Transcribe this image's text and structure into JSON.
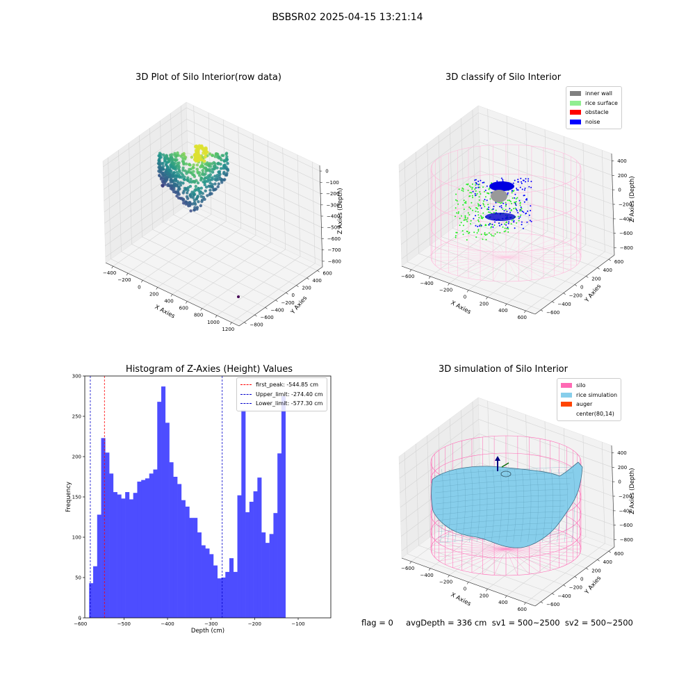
{
  "suptitle": "BSBSR02 2025-04-15 13:21:14",
  "bottom_info": "flag = 0     avgDepth = 336 cm  sv1 = 500~2500  sv2 = 500~2500",
  "chart_data": [
    {
      "type": "scatter",
      "title": "3D Plot of Silo Interior(row data)",
      "xlabel": "X Axies",
      "ylabel": "Y Axies",
      "zlabel": "Z Axies (Depth)",
      "x_ticks": [
        "−400",
        "−200",
        "0",
        "200",
        "400",
        "600",
        "800",
        "1000",
        "1200"
      ],
      "y_ticks": [
        "−800",
        "−600",
        "−400",
        "−200",
        "0",
        "200",
        "400",
        "600"
      ],
      "z_ticks": [
        "0",
        "−100",
        "−200",
        "−300",
        "−400",
        "−500",
        "−600",
        "−700",
        "−800"
      ],
      "xlim": [
        -450,
        1250
      ],
      "ylim": [
        -900,
        700
      ],
      "zlim": [
        -880,
        0
      ],
      "colormap": "viridis",
      "grid": true
    },
    {
      "type": "scatter",
      "title": "3D classify of Silo Interior",
      "xlabel": "X Axies",
      "ylabel": "Y Axies",
      "zlabel": "Z Axies (Depth)",
      "x_ticks": [
        "−600",
        "−400",
        "−200",
        "0",
        "200",
        "400",
        "600"
      ],
      "y_ticks": [
        "−600",
        "−400",
        "−200",
        "0",
        "200",
        "400",
        "600"
      ],
      "z_ticks": [
        "400",
        "200",
        "0",
        "−200",
        "−400",
        "−600",
        "−800"
      ],
      "legend": [
        {
          "label": "inner wall",
          "color": "#808080"
        },
        {
          "label": "rice surface",
          "color": "#90ee90"
        },
        {
          "label": "obstacle",
          "color": "#ff0000"
        },
        {
          "label": "noise",
          "color": "#0000ff"
        }
      ],
      "legend_position": "top-right",
      "silo_color": "#ffb6d9",
      "grid": true
    },
    {
      "type": "bar",
      "title": "Histogram of Z-Axies (Height) Values",
      "xlabel": "Depth (cm)",
      "ylabel": "Frequency",
      "bin_start": -580,
      "bin_width": 9.2,
      "values": [
        43,
        64,
        128,
        223,
        205,
        179,
        156,
        153,
        148,
        156,
        147,
        155,
        169,
        171,
        173,
        179,
        184,
        268,
        287,
        242,
        193,
        175,
        166,
        146,
        138,
        124,
        124,
        106,
        90,
        86,
        79,
        65,
        49,
        50,
        57,
        74,
        57,
        152,
        258,
        131,
        144,
        157,
        174,
        106,
        93,
        104,
        130,
        204,
        275
      ],
      "xlim": [
        -590,
        -25
      ],
      "ylim": [
        0,
        300
      ],
      "x_ticks": [
        -600,
        -500,
        -400,
        -300,
        -200,
        -100
      ],
      "x_tick_labels": [
        "−600",
        "−500",
        "−400",
        "−300",
        "−200",
        "−100"
      ],
      "y_ticks": [
        0,
        50,
        100,
        150,
        200,
        250,
        300
      ],
      "bar_color": "#4d4dff",
      "vlines": [
        {
          "label": "first_peak: -544.85 cm",
          "x": -544.85,
          "color": "#ff0000"
        },
        {
          "label": "Upper_limit: -274.40 cm",
          "x": -274.4,
          "color": "#0000cc"
        },
        {
          "label": "Lower_limit: -577.30 cm",
          "x": -577.3,
          "color": "#0000cc"
        }
      ],
      "legend_position": "top-right"
    },
    {
      "type": "surface",
      "title": "3D simulation of Silo Interior",
      "xlabel": "X Axies",
      "ylabel": "Y Axies",
      "zlabel": "Z Axies (Depth)",
      "x_ticks": [
        "−600",
        "−400",
        "−200",
        "0",
        "200",
        "400",
        "600"
      ],
      "y_ticks": [
        "−600",
        "−400",
        "−200",
        "0",
        "200",
        "400",
        "600"
      ],
      "z_ticks": [
        "400",
        "200",
        "0",
        "−200",
        "−400",
        "−600",
        "−800"
      ],
      "legend": [
        {
          "label": "silo",
          "color": "#ff69b4"
        },
        {
          "label": "rice simulation",
          "color": "#87ceeb"
        },
        {
          "label": "auger",
          "color": "#ff4500"
        },
        {
          "label": "center(80,14)",
          "color": "#ffffff"
        }
      ],
      "legend_position": "top-right",
      "grid": true
    }
  ]
}
